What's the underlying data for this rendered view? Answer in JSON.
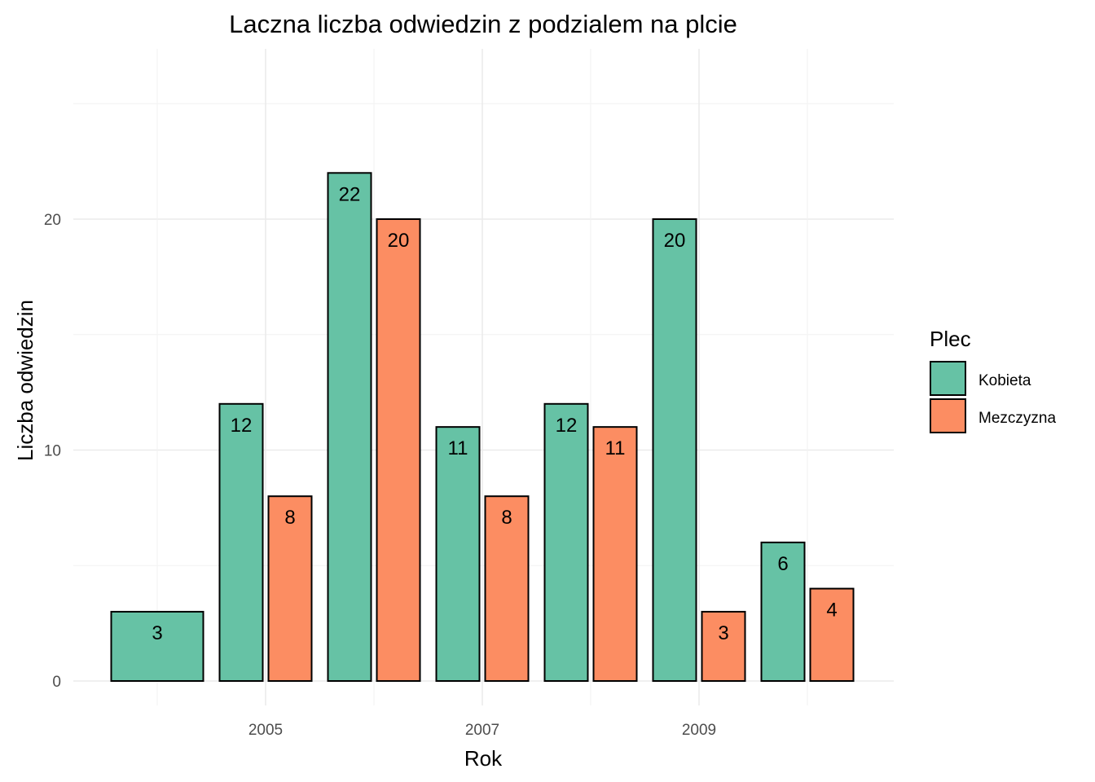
{
  "chart_data": {
    "type": "bar",
    "title": "Laczna liczba odwiedzin z podzialem na plcie",
    "xlabel": "Rok",
    "ylabel": "Liczba odwiedzin",
    "x_ticks": [
      "2005",
      "2007",
      "2009"
    ],
    "y_ticks": [
      "0",
      "10",
      "20"
    ],
    "ylim": [
      0,
      27
    ],
    "grid": true,
    "legend": {
      "title": "Plec",
      "position": "right"
    },
    "series": [
      {
        "name": "Kobieta",
        "color": "#66C2A5",
        "points": [
          {
            "year": 2004,
            "value": 3
          },
          {
            "year": 2005,
            "value": 12
          },
          {
            "year": 2006,
            "value": 22
          },
          {
            "year": 2007,
            "value": 11
          },
          {
            "year": 2008,
            "value": 12
          },
          {
            "year": 2009,
            "value": 20
          },
          {
            "year": 2010,
            "value": 6
          }
        ]
      },
      {
        "name": "Mezczyzna",
        "color": "#FC8D62",
        "points": [
          {
            "year": 2005,
            "value": 8
          },
          {
            "year": 2006,
            "value": 20
          },
          {
            "year": 2007,
            "value": 8
          },
          {
            "year": 2008,
            "value": 11
          },
          {
            "year": 2009,
            "value": 3
          },
          {
            "year": 2010,
            "value": 4
          }
        ]
      }
    ]
  }
}
